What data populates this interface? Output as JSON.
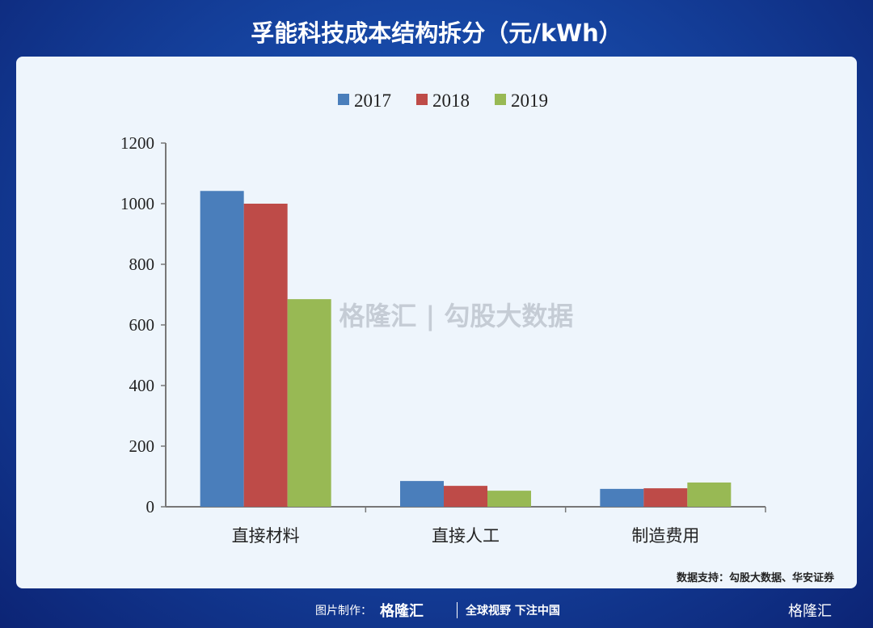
{
  "title": "孚能科技成本结构拆分（元/kWh）",
  "source": "数据支持：勾股大数据、华安证券",
  "watermark": "格隆汇 | 勾股大数据",
  "footer": {
    "credit": "图片制作：",
    "brand": "格隆汇",
    "slogan": "全球视野 下注中国",
    "corner": "格隆汇"
  },
  "chart_data": {
    "type": "bar",
    "title": "",
    "categories": [
      "直接材料",
      "直接人工",
      "制造费用"
    ],
    "series": [
      {
        "name": "2017",
        "color": "#4a7ebb",
        "values": [
          1042,
          85,
          59
        ]
      },
      {
        "name": "2018",
        "color": "#be4b48",
        "values": [
          1000,
          69,
          61
        ]
      },
      {
        "name": "2019",
        "color": "#98b954",
        "values": [
          685,
          53,
          80
        ]
      }
    ],
    "ylim": [
      0,
      1200
    ],
    "yticks": [
      0,
      200,
      400,
      600,
      800,
      1000,
      1200
    ],
    "legend": "top-center",
    "grid": false
  }
}
